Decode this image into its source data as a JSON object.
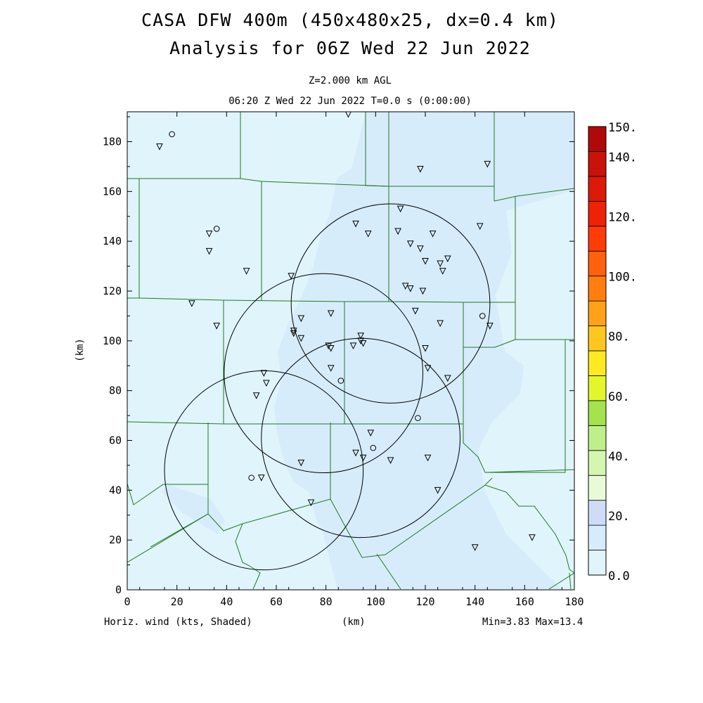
{
  "title_line1": "CASA DFW 400m (450x480x25, dx=0.4 km)",
  "title_line2": "Analysis for 06Z Wed 22 Jun 2022",
  "subtitle_level": "Z=2.000 km AGL",
  "subtitle_time": "06:20 Z Wed 22 Jun 2022   T=0.0 s (0:00:00)",
  "x_axis": {
    "label": "(km)",
    "range": [
      0,
      180
    ],
    "ticks": [
      "0",
      "20",
      "40",
      "60",
      "80",
      "100",
      "120",
      "140",
      "160",
      "180"
    ]
  },
  "y_axis": {
    "label": "(km)",
    "range": [
      0,
      192
    ],
    "ticks": [
      "0",
      "20",
      "40",
      "60",
      "80",
      "100",
      "120",
      "140",
      "160",
      "180"
    ]
  },
  "footer_left": "Horiz. wind (kts, Shaded)",
  "footer_center": "(km)",
  "footer_right": "Min=3.83 Max=13.4",
  "colorbar": {
    "labels": [
      "150.",
      "140.",
      "120.",
      "100.",
      "80.",
      "60.",
      "40.",
      "20.",
      "0.0"
    ],
    "colors": [
      "#e0f4fb",
      "#d6ecfb",
      "#d0dcf7",
      "#e8fbd8",
      "#d4f6b0",
      "#bfef8c",
      "#a2e34e",
      "#e3f62c",
      "#ffea22",
      "#fec720",
      "#ffa21a",
      "#fe7e10",
      "#ff610c",
      "#ff3c07",
      "#ef2106",
      "#db1a08",
      "#c8120a",
      "#b00909"
    ]
  },
  "field_colors": {
    "light": "#e0f4fb",
    "medium": "#d6ecfb",
    "county_line": "#217a21"
  },
  "radar_range_rings_km": [
    {
      "center": [
        55,
        48
      ],
      "radius": 40
    },
    {
      "center": [
        79,
        87
      ],
      "radius": 40
    },
    {
      "center": [
        106,
        115
      ],
      "radius": 40
    },
    {
      "center": [
        94,
        61
      ],
      "radius": 40
    }
  ],
  "stations_triangles_km": [
    [
      13,
      178
    ],
    [
      89,
      191
    ],
    [
      118,
      169
    ],
    [
      145,
      171
    ],
    [
      33,
      143
    ],
    [
      33,
      136
    ],
    [
      48,
      128
    ],
    [
      66,
      126
    ],
    [
      110,
      153
    ],
    [
      92,
      147
    ],
    [
      97,
      143
    ],
    [
      109,
      144
    ],
    [
      114,
      139
    ],
    [
      118,
      137
    ],
    [
      123,
      143
    ],
    [
      120,
      132
    ],
    [
      126,
      131
    ],
    [
      127,
      128
    ],
    [
      129,
      133
    ],
    [
      142,
      146
    ],
    [
      26,
      115
    ],
    [
      36,
      106
    ],
    [
      112,
      122
    ],
    [
      114,
      121
    ],
    [
      119,
      120
    ],
    [
      116,
      112
    ],
    [
      126,
      107
    ],
    [
      146,
      106
    ],
    [
      82,
      111
    ],
    [
      70,
      109
    ],
    [
      67,
      104
    ],
    [
      67,
      103
    ],
    [
      70,
      101
    ],
    [
      81,
      98
    ],
    [
      82,
      97
    ],
    [
      91,
      98
    ],
    [
      94,
      102
    ],
    [
      94,
      100
    ],
    [
      95,
      99
    ],
    [
      120,
      97
    ],
    [
      121,
      89
    ],
    [
      129,
      85
    ],
    [
      82,
      89
    ],
    [
      55,
      87
    ],
    [
      56,
      83
    ],
    [
      52,
      78
    ],
    [
      98,
      63
    ],
    [
      92,
      55
    ],
    [
      95,
      53
    ],
    [
      106,
      52
    ],
    [
      121,
      53
    ],
    [
      70,
      51
    ],
    [
      54,
      45
    ],
    [
      74,
      35
    ],
    [
      125,
      40
    ],
    [
      140,
      17
    ],
    [
      163,
      21
    ]
  ],
  "stations_circles_km": [
    [
      18,
      183
    ],
    [
      36,
      145
    ],
    [
      86,
      84
    ],
    [
      117,
      69
    ],
    [
      99,
      57
    ],
    [
      50,
      45
    ],
    [
      143,
      110
    ]
  ]
}
